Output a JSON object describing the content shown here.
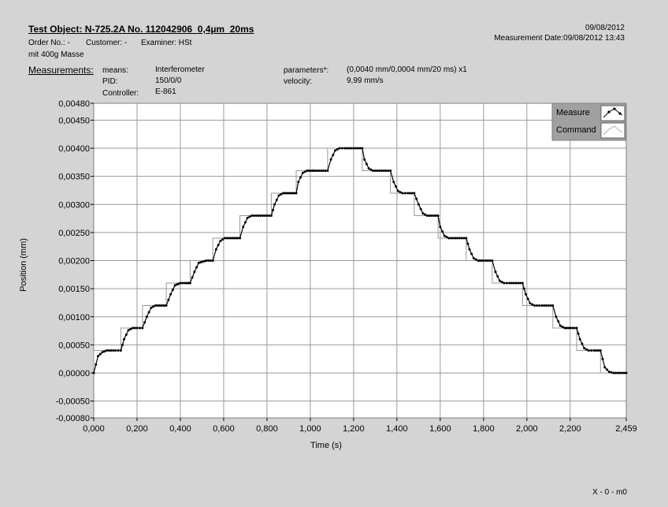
{
  "header": {
    "title": "Test Object: N-725.2A No. 112042906_0,4µm_20ms",
    "order_no": "Order No.: -",
    "customer": "Customer: -",
    "examiner": "Examiner: HSt",
    "note": "mit 400g Masse",
    "date": "09/08/2012",
    "measurement_date": "Measurement Date:09/08/2012 13:43"
  },
  "measurements": {
    "heading": "Measurements:",
    "means_label": "means:",
    "means_value": "Interferometer",
    "pid_label": "PID:",
    "pid_value": "150/0/0",
    "controller_label": "Controller:",
    "controller_value": "E-861",
    "parameters_label": "parameters*:",
    "parameters_value": "(0,0040 mm/0,0004 mm/20 ms) x1",
    "velocity_label": "velocity:",
    "velocity_value": "9,99 mm/s"
  },
  "footer": {
    "cursor_label": "X - 0 - m0"
  },
  "chart_data": {
    "type": "line",
    "xlabel": "Time (s)",
    "ylabel": "Position  (mm)",
    "xlim": [
      0,
      2.459
    ],
    "ylim": [
      -0.0008,
      0.0048
    ],
    "x_ticks": [
      "0,000",
      "0,200",
      "0,400",
      "0,600",
      "0,800",
      "1,000",
      "1,200",
      "1,400",
      "1,600",
      "1,800",
      "2,000",
      "2,200",
      "2,459"
    ],
    "y_ticks": [
      "0,00480",
      "0,00450",
      "0,00400",
      "0,00350",
      "0,00300",
      "0,00250",
      "0,00200",
      "0,00150",
      "0,00100",
      "0,00050",
      "0,00000",
      "-0,00050",
      "-0,00080"
    ],
    "grid": true,
    "legend_position": "top-right",
    "series": [
      {
        "name": "Measure",
        "color": "#000000",
        "marker": "dot",
        "x": [
          0,
          0.02,
          0.04,
          0.06,
          0.1,
          0.125,
          0.14,
          0.16,
          0.18,
          0.2,
          0.225,
          0.245,
          0.265,
          0.285,
          0.32,
          0.335,
          0.355,
          0.375,
          0.4,
          0.43,
          0.445,
          0.465,
          0.485,
          0.52,
          0.55,
          0.565,
          0.585,
          0.605,
          0.65,
          0.675,
          0.69,
          0.71,
          0.73,
          0.76,
          0.82,
          0.835,
          0.855,
          0.875,
          0.9,
          0.935,
          0.945,
          0.965,
          0.985,
          1.02,
          1.08,
          1.095,
          1.115,
          1.135,
          1.16,
          1.24,
          1.25,
          1.27,
          1.29,
          1.32,
          1.37,
          1.385,
          1.405,
          1.425,
          1.45,
          1.48,
          1.5,
          1.52,
          1.54,
          1.56,
          1.59,
          1.6,
          1.62,
          1.64,
          1.67,
          1.72,
          1.735,
          1.755,
          1.775,
          1.8,
          1.84,
          1.855,
          1.875,
          1.895,
          1.92,
          1.98,
          1.995,
          2.015,
          2.035,
          2.07,
          2.12,
          2.135,
          2.155,
          2.175,
          2.2,
          2.23,
          2.245,
          2.265,
          2.285,
          2.31,
          2.34,
          2.36,
          2.38,
          2.4,
          2.459
        ],
        "y": [
          0,
          0.0003,
          0.00037,
          0.0004,
          0.0004,
          0.0004,
          0.0006,
          0.00076,
          0.0008,
          0.0008,
          0.0008,
          0.001,
          0.00116,
          0.0012,
          0.0012,
          0.0012,
          0.0014,
          0.00156,
          0.0016,
          0.0016,
          0.0016,
          0.0018,
          0.00196,
          0.002,
          0.002,
          0.0022,
          0.00235,
          0.0024,
          0.0024,
          0.0024,
          0.0026,
          0.00276,
          0.0028,
          0.0028,
          0.0028,
          0.003,
          0.00316,
          0.0032,
          0.0032,
          0.0032,
          0.0034,
          0.00356,
          0.0036,
          0.0036,
          0.0036,
          0.0038,
          0.00396,
          0.004,
          0.004,
          0.004,
          0.0038,
          0.00364,
          0.0036,
          0.0036,
          0.0036,
          0.0034,
          0.00324,
          0.0032,
          0.0032,
          0.0032,
          0.003,
          0.00284,
          0.0028,
          0.0028,
          0.0028,
          0.0026,
          0.00244,
          0.0024,
          0.0024,
          0.0024,
          0.0022,
          0.00204,
          0.002,
          0.002,
          0.002,
          0.0018,
          0.00164,
          0.0016,
          0.0016,
          0.0016,
          0.0014,
          0.00124,
          0.0012,
          0.0012,
          0.0012,
          0.001,
          0.00084,
          0.0008,
          0.0008,
          0.0008,
          0.0006,
          0.00044,
          0.0004,
          0.0004,
          0.0004,
          0.0001,
          2e-05,
          0,
          0
        ]
      },
      {
        "name": "Command",
        "color": "#999999",
        "marker": "none",
        "x": [
          0,
          0,
          0.125,
          0.125,
          0.225,
          0.225,
          0.335,
          0.335,
          0.445,
          0.445,
          0.55,
          0.55,
          0.675,
          0.675,
          0.82,
          0.82,
          0.935,
          0.935,
          1.08,
          1.08,
          1.24,
          1.24,
          1.37,
          1.37,
          1.48,
          1.48,
          1.59,
          1.59,
          1.72,
          1.72,
          1.84,
          1.84,
          1.98,
          1.98,
          2.12,
          2.12,
          2.23,
          2.23,
          2.34,
          2.34,
          2.459
        ],
        "y": [
          0,
          0.0004,
          0.0004,
          0.0008,
          0.0008,
          0.0012,
          0.0012,
          0.0016,
          0.0016,
          0.002,
          0.002,
          0.0024,
          0.0024,
          0.0028,
          0.0028,
          0.0032,
          0.0032,
          0.0036,
          0.0036,
          0.004,
          0.004,
          0.0036,
          0.0036,
          0.0032,
          0.0032,
          0.0028,
          0.0028,
          0.0024,
          0.0024,
          0.002,
          0.002,
          0.0016,
          0.0016,
          0.0012,
          0.0012,
          0.0008,
          0.0008,
          0.0004,
          0.0004,
          0,
          0
        ]
      }
    ]
  }
}
